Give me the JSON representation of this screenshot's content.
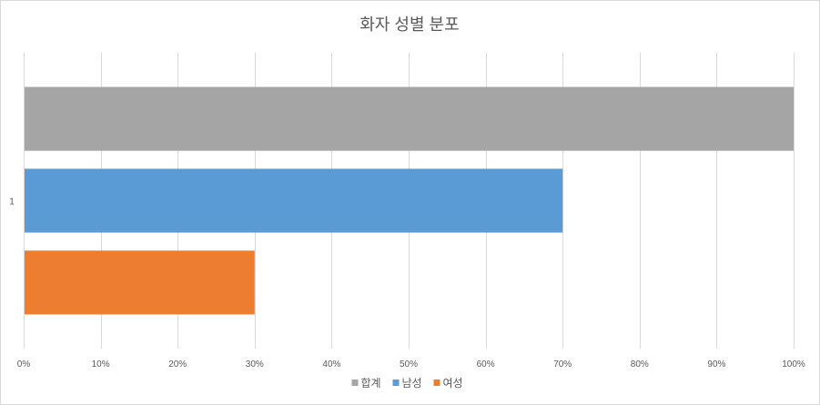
{
  "chart_data": {
    "type": "bar",
    "orientation": "horizontal",
    "title": "화자 성별 분포",
    "categories": [
      "1"
    ],
    "series": [
      {
        "name": "합계",
        "values": [
          100
        ],
        "color": "#a5a5a5"
      },
      {
        "name": "남성",
        "values": [
          70
        ],
        "color": "#5b9bd5"
      },
      {
        "name": "여성",
        "values": [
          30
        ],
        "color": "#ed7d31"
      }
    ],
    "xlim": [
      0,
      100
    ],
    "x_ticks": [
      "0%",
      "10%",
      "20%",
      "30%",
      "40%",
      "50%",
      "60%",
      "70%",
      "80%",
      "90%",
      "100%"
    ],
    "grid": true,
    "legend_position": "bottom"
  }
}
